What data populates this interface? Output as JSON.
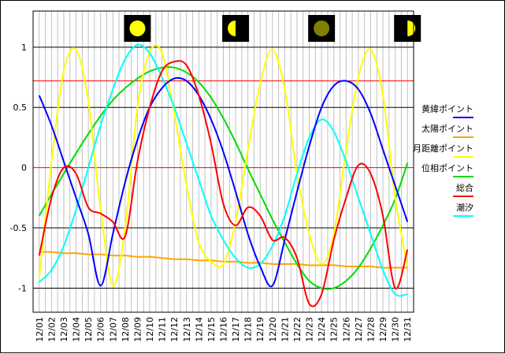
{
  "chart_data": {
    "type": "line",
    "title": "",
    "xlabel": "",
    "ylabel": "",
    "ylim": [
      -1.2,
      1.3
    ],
    "yticks": [
      1,
      0.5,
      0,
      -0.5,
      -1
    ],
    "ytick_labels": [
      "1",
      "0.5",
      "0",
      "-0.5",
      "-1"
    ],
    "grid": true,
    "legend_position": "right",
    "reference_lines": [
      {
        "value": 0.72,
        "color": "#ff0000"
      },
      {
        "value": 0,
        "color": "#ff0000"
      }
    ],
    "categories": [
      "12/01",
      "12/02",
      "12/03",
      "12/04",
      "12/05",
      "12/06",
      "12/07",
      "12/08",
      "12/09",
      "12/10",
      "12/11",
      "12/12",
      "12/13",
      "12/14",
      "12/15",
      "12/16",
      "12/17",
      "12/18",
      "12/19",
      "12/20",
      "12/21",
      "12/22",
      "12/23",
      "12/24",
      "12/25",
      "12/26",
      "12/27",
      "12/28",
      "12/29",
      "12/30",
      "12/31"
    ],
    "moon_phases": [
      {
        "day": 8,
        "phase": "full",
        "color": "#ffff00"
      },
      {
        "day": 16,
        "phase": "last-quarter",
        "color": "#ffff00"
      },
      {
        "day": 23,
        "phase": "new",
        "color": "#808000"
      },
      {
        "day": 30,
        "phase": "first-quarter",
        "color": "#ffff00"
      }
    ],
    "series": [
      {
        "name": "黄緯ポイント",
        "color": "#0000ff",
        "values": [
          0.6,
          0.35,
          0.05,
          -0.25,
          -0.55,
          -0.98,
          -0.55,
          -0.12,
          0.23,
          0.5,
          0.66,
          0.74,
          0.72,
          0.6,
          0.4,
          0.13,
          -0.2,
          -0.55,
          -0.82,
          -0.98,
          -0.6,
          -0.2,
          0.18,
          0.5,
          0.68,
          0.72,
          0.65,
          0.45,
          0.15,
          -0.15,
          -0.45
        ]
      },
      {
        "name": "太陽ポイント",
        "color": "#ffa500",
        "values": [
          -0.7,
          -0.7,
          -0.71,
          -0.71,
          -0.72,
          -0.72,
          -0.73,
          -0.73,
          -0.74,
          -0.74,
          -0.75,
          -0.76,
          -0.76,
          -0.77,
          -0.77,
          -0.78,
          -0.78,
          -0.79,
          -0.79,
          -0.8,
          -0.8,
          -0.8,
          -0.81,
          -0.81,
          -0.81,
          -0.82,
          -0.82,
          -0.82,
          -0.83,
          -0.83,
          -0.83
        ]
      },
      {
        "name": "月距離ポイント",
        "color": "#ffff00",
        "values": [
          -0.92,
          0.05,
          0.8,
          0.98,
          0.55,
          -0.35,
          -0.98,
          -0.5,
          0.5,
          0.96,
          0.95,
          0.45,
          -0.15,
          -0.62,
          -0.78,
          -0.8,
          -0.45,
          0.15,
          0.7,
          0.98,
          0.65,
          -0.05,
          -0.55,
          -0.8,
          -0.55,
          0.15,
          0.75,
          0.98,
          0.6,
          -0.25,
          -0.82
        ]
      },
      {
        "name": "位相ポイント",
        "color": "#00dd00",
        "values": [
          -0.4,
          -0.22,
          -0.05,
          0.12,
          0.28,
          0.43,
          0.56,
          0.66,
          0.74,
          0.8,
          0.83,
          0.83,
          0.79,
          0.71,
          0.58,
          0.41,
          0.21,
          -0.01,
          -0.22,
          -0.43,
          -0.62,
          -0.8,
          -0.94,
          -1.0,
          -1.0,
          -0.94,
          -0.83,
          -0.67,
          -0.48,
          -0.26,
          0.04
        ]
      },
      {
        "name": "総合",
        "color": "#ff0000",
        "values": [
          -0.73,
          -0.25,
          0.0,
          -0.05,
          -0.33,
          -0.38,
          -0.45,
          -0.57,
          0.05,
          0.5,
          0.8,
          0.88,
          0.85,
          0.6,
          0.2,
          -0.3,
          -0.48,
          -0.33,
          -0.4,
          -0.6,
          -0.58,
          -0.75,
          -1.13,
          -1.05,
          -0.6,
          -0.25,
          0.02,
          -0.05,
          -0.4,
          -1.0,
          -0.68
        ]
      },
      {
        "name": "潮汐",
        "color": "#00ffff",
        "values": [
          -0.95,
          -0.85,
          -0.65,
          -0.35,
          0.0,
          0.35,
          0.65,
          0.9,
          1.02,
          0.95,
          0.75,
          0.5,
          0.2,
          -0.1,
          -0.4,
          -0.6,
          -0.75,
          -0.83,
          -0.8,
          -0.65,
          -0.4,
          -0.05,
          0.25,
          0.4,
          0.3,
          0.05,
          -0.25,
          -0.55,
          -0.85,
          -1.05,
          -1.05
        ]
      }
    ]
  }
}
